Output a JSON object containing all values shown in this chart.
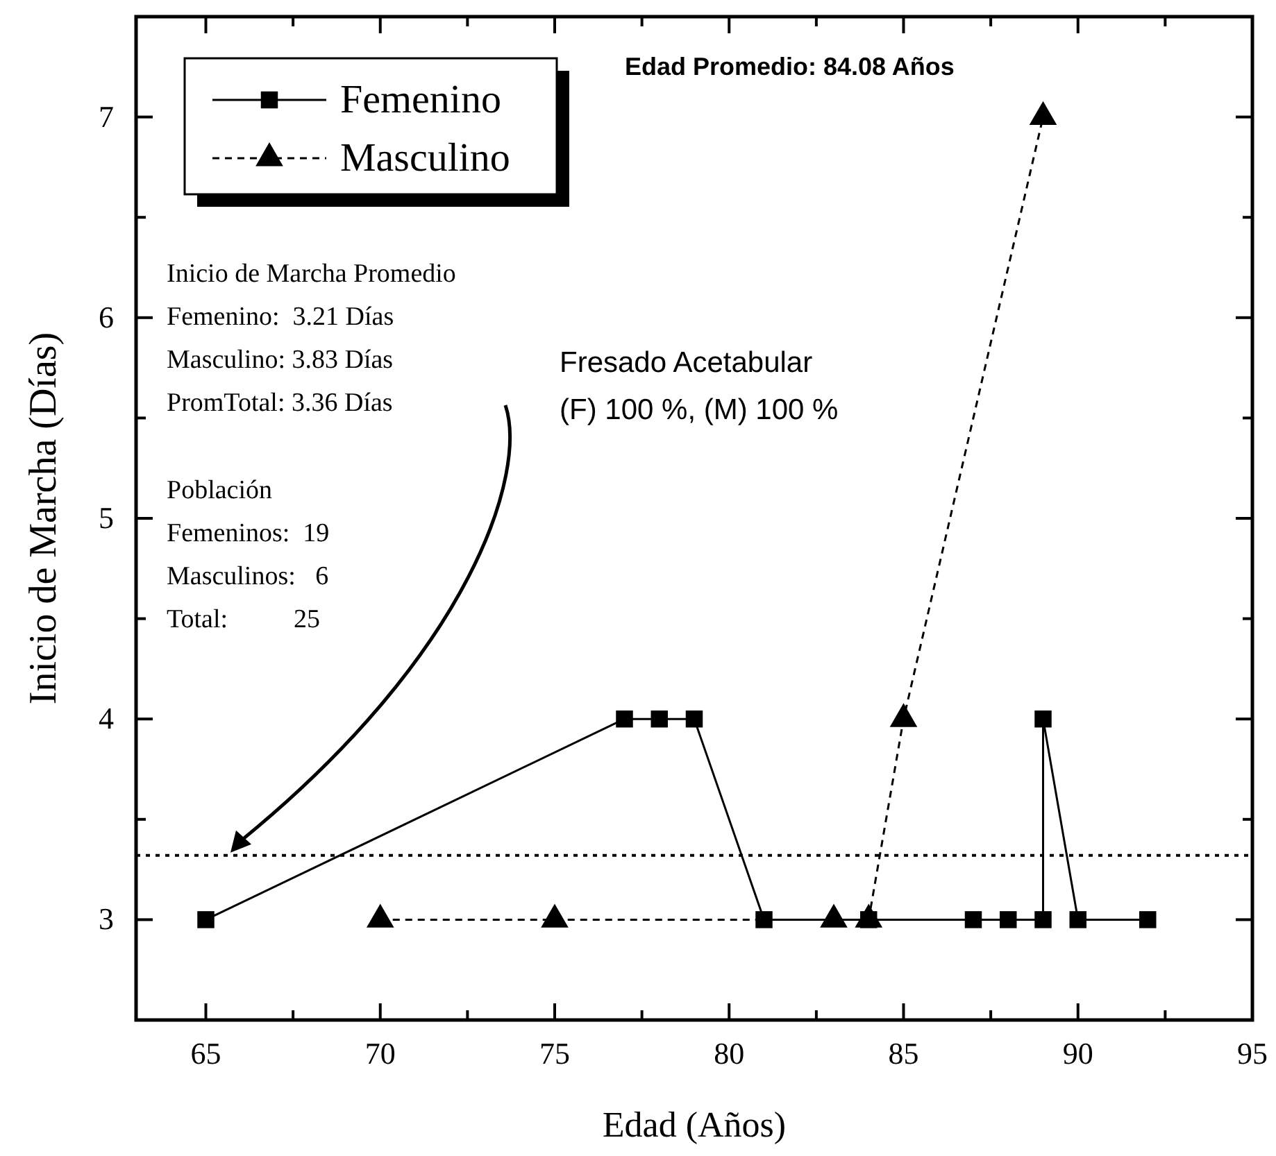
{
  "chart_data": {
    "type": "line",
    "xlabel": "Edad (Años)",
    "ylabel": "Inicio de Marcha (Días)",
    "xlim": [
      63,
      95
    ],
    "ylim": [
      2.5,
      7.5
    ],
    "xticks": [
      65,
      {
        "value": 67.5,
        "label": null
      },
      70,
      {
        "value": 72.5,
        "label": null
      },
      75,
      {
        "value": 77.5,
        "label": null
      },
      80,
      {
        "value": 82.5,
        "label": null
      },
      85,
      {
        "value": 87.5,
        "label": null
      },
      90,
      {
        "value": 92.5,
        "label": null
      },
      95
    ],
    "yticks": [
      3,
      {
        "value": 3.5,
        "label": null
      },
      4,
      {
        "value": 4.5,
        "label": null
      },
      5,
      {
        "value": 5.5,
        "label": null
      },
      6,
      {
        "value": 6.5,
        "label": null
      },
      7
    ],
    "grid": false,
    "legend": "top left",
    "series": [
      {
        "name": "Femenino",
        "color": "#000000",
        "marker": "square",
        "line_style": "solid",
        "x": [
          65,
          77,
          78,
          79,
          81,
          84,
          87,
          88,
          89,
          89,
          90,
          92
        ],
        "values": [
          3,
          4,
          4,
          4,
          3,
          3,
          3,
          3,
          3,
          4,
          3,
          3
        ]
      },
      {
        "name": "Masculino",
        "color": "#000000",
        "marker": "triangle",
        "line_style": "dashed",
        "x": [
          70,
          75,
          83,
          84,
          85,
          89
        ],
        "values": [
          3,
          3,
          3,
          3,
          4,
          7
        ]
      }
    ],
    "ref_lines": [
      {
        "axis": "y",
        "value": 3.32,
        "line_style": "dotted",
        "color": "#000000"
      }
    ],
    "annotations": [
      "Edad Promedio: 84.08 Años",
      "Inicio de Marcha Promedio\nFemenino:  3.21 Días\nMasculino: 3.83 Días\nPromTotal: 3.36 Días",
      "Población\nFemeninos:  19\nMasculinos:   6\nTotal:          25",
      "Fresado Acetabular\n(F) 100 %, (M) 100 %"
    ]
  }
}
